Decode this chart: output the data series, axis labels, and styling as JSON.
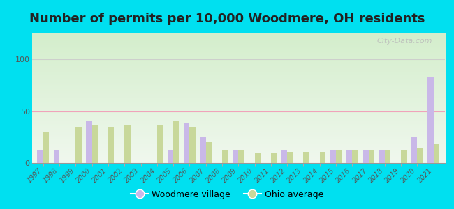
{
  "title": "Number of permits per 10,000 Woodmere, OH residents",
  "years": [
    1997,
    1998,
    1999,
    2000,
    2001,
    2002,
    2003,
    2004,
    2005,
    2006,
    2007,
    2008,
    2009,
    2010,
    2011,
    2012,
    2013,
    2014,
    2015,
    2016,
    2017,
    2018,
    2019,
    2020,
    2021
  ],
  "woodmere": [
    13,
    13,
    0,
    40,
    0,
    0,
    0,
    0,
    12,
    38,
    25,
    0,
    13,
    0,
    0,
    13,
    0,
    0,
    13,
    13,
    13,
    13,
    0,
    25,
    83
  ],
  "ohio_avg": [
    30,
    0,
    35,
    37,
    35,
    36,
    0,
    37,
    40,
    35,
    20,
    13,
    13,
    10,
    10,
    11,
    11,
    11,
    12,
    13,
    13,
    13,
    13,
    14,
    18
  ],
  "woodmere_color": "#c9b8e8",
  "ohio_avg_color": "#c8d89a",
  "outer_bg": "#00e0f0",
  "ylim": [
    0,
    125
  ],
  "yticks": [
    0,
    50,
    100
  ],
  "hline_50_color": "#f48fb1",
  "hline_100_color": "#cccccc",
  "legend_woodmere": "Woodmere village",
  "legend_ohio": "Ohio average",
  "watermark": "City-Data.com",
  "title_fontsize": 13,
  "bar_width": 0.36
}
